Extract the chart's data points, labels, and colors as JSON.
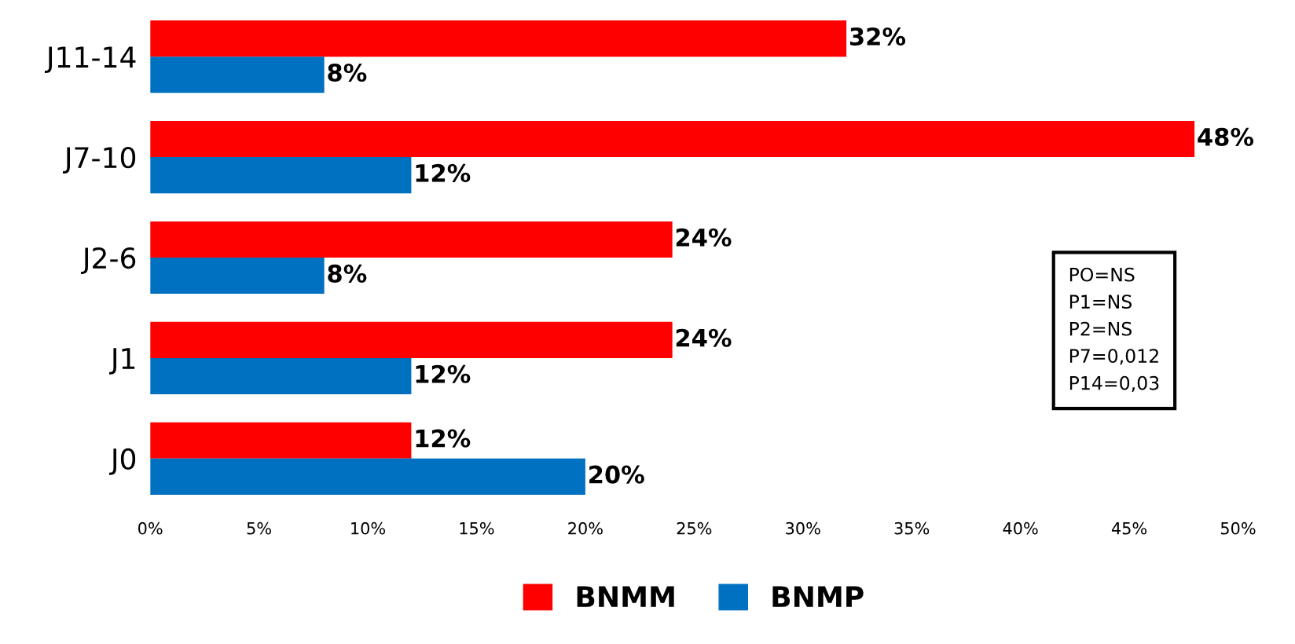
{
  "chart_data": {
    "type": "bar",
    "orientation": "horizontal",
    "categories": [
      "J11-14",
      "J7-10",
      "J2-6",
      "J1",
      "J0"
    ],
    "series": [
      {
        "name": "BNMM",
        "color": "#ff0000",
        "values": [
          32,
          48,
          24,
          24,
          12
        ],
        "value_labels": [
          "32%",
          "48%",
          "24%",
          "24%",
          "12%"
        ]
      },
      {
        "name": "BNMP",
        "color": "#0070c0",
        "values": [
          8,
          12,
          8,
          12,
          20
        ],
        "value_labels": [
          "8%",
          "12%",
          "8%",
          "12%",
          "20%"
        ]
      }
    ],
    "xlim": [
      0,
      50
    ],
    "xticks": [
      {
        "value": 0,
        "label": "0%"
      },
      {
        "value": 5,
        "label": "5%"
      },
      {
        "value": 10,
        "label": "10%"
      },
      {
        "value": 15,
        "label": "15%"
      },
      {
        "value": 20,
        "label": "20%"
      },
      {
        "value": 25,
        "label": "25%"
      },
      {
        "value": 30,
        "label": "30%"
      },
      {
        "value": 35,
        "label": "35%"
      },
      {
        "value": 40,
        "label": "40%"
      },
      {
        "value": 45,
        "label": "45%"
      },
      {
        "value": 50,
        "label": "50%"
      }
    ],
    "annotations": [
      "PO=NS",
      "P1=NS",
      "P2=NS",
      "P7=0,012",
      "P14=0,03"
    ],
    "legend": "bottom",
    "grid": false
  }
}
